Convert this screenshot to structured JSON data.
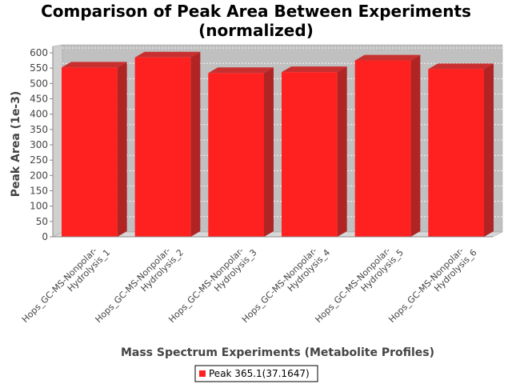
{
  "chart_data": {
    "type": "bar",
    "title": [
      "Comparison of Peak Area Between Experiments",
      "(normalized)"
    ],
    "xlabel": "Mass Spectrum Experiments (Metabolite Profiles)",
    "ylabel": "Peak Area (1e-3)",
    "ylim": [
      0,
      600
    ],
    "yticks": [
      0,
      50,
      100,
      150,
      200,
      250,
      300,
      350,
      400,
      450,
      500,
      550,
      600
    ],
    "grid": true,
    "legend_position": "bottom",
    "categories": [
      [
        "Hops_GC-MS-Nonpolar-",
        "Hydrolysis_1"
      ],
      [
        "Hops_GC-MS-Nonpolar-",
        "Hydrolysis_2"
      ],
      [
        "Hops_GC-MS-Nonpolar-",
        "Hydrolysis_3"
      ],
      [
        "Hops_GC-MS-Nonpolar-",
        "Hydrolysis_4"
      ],
      [
        "Hops_GC-MS-Nonpolar-",
        "Hydrolysis_5"
      ],
      [
        "Hops_GC-MS-Nonpolar-",
        "Hydrolysis_6"
      ]
    ],
    "series": [
      {
        "name": "Peak 365.1(37.1647)",
        "color": "#ff2020",
        "values": [
          552,
          585,
          534,
          537,
          575,
          547
        ]
      }
    ]
  }
}
